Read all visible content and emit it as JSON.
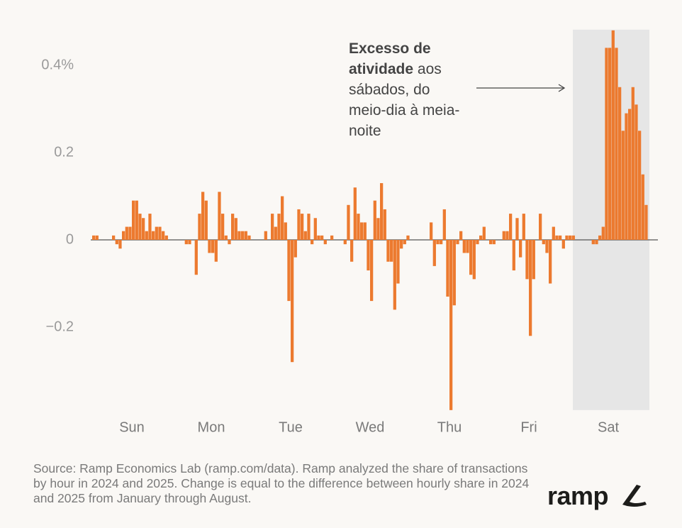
{
  "chart_data": {
    "type": "bar",
    "color": "#ec7a2f",
    "ylim": [
      -0.39,
      0.48
    ],
    "yticks": [
      {
        "value": 0.4,
        "label": "0.4%"
      },
      0.2,
      0,
      {
        "value": -0.2,
        "label": "−0.2"
      }
    ],
    "groups": [
      {
        "label": "Sun",
        "values": [
          0.01,
          0.01,
          0,
          0,
          0,
          0,
          0.01,
          -0.01,
          -0.02,
          0.02,
          0.03,
          0.03,
          0.09,
          0.09,
          0.06,
          0.05,
          0.02,
          0.06,
          0.02,
          0.03,
          0.03,
          0.02,
          0.01,
          0
        ]
      },
      {
        "label": "Mon",
        "values": [
          0,
          0,
          0,
          0,
          -0.01,
          -0.01,
          0,
          -0.08,
          0.06,
          0.11,
          0.09,
          -0.03,
          -0.03,
          -0.05,
          0.11,
          0.06,
          0.01,
          -0.01,
          0.06,
          0.05,
          0.02,
          0.02,
          0.02,
          0.01
        ]
      },
      {
        "label": "Tue",
        "values": [
          0,
          0,
          0,
          0,
          0.02,
          0,
          0.06,
          0.03,
          0.06,
          0.1,
          0.04,
          -0.14,
          -0.28,
          -0.04,
          0.07,
          0.06,
          0.02,
          0.06,
          -0.01,
          0.05,
          0.01,
          0.01,
          -0.01,
          0
        ]
      },
      {
        "label": "Wed",
        "values": [
          0.01,
          0,
          0,
          0,
          -0.01,
          0.08,
          -0.05,
          0.12,
          0.06,
          0.04,
          0.04,
          -0.07,
          -0.14,
          0.09,
          0.05,
          0.13,
          0.07,
          -0.05,
          -0.05,
          -0.16,
          -0.1,
          -0.02,
          -0.01,
          0.01
        ]
      },
      {
        "label": "Thu",
        "values": [
          0,
          0,
          0,
          0,
          0,
          0,
          0.04,
          -0.06,
          -0.01,
          -0.01,
          0.07,
          -0.13,
          -0.39,
          -0.15,
          -0.01,
          0.02,
          -0.03,
          -0.03,
          -0.08,
          -0.09,
          -0.01,
          0.01,
          0.03,
          0
        ]
      },
      {
        "label": "Fri",
        "values": [
          -0.01,
          -0.01,
          0,
          0,
          0.02,
          0.02,
          0.06,
          -0.07,
          0.05,
          -0.04,
          0.06,
          -0.09,
          -0.22,
          -0.09,
          0,
          0.06,
          -0.01,
          -0.03,
          -0.1,
          0.03,
          0.01,
          0.01,
          -0.02,
          0.01
        ]
      },
      {
        "label": "Sat",
        "values": [
          0.01,
          0.01,
          0,
          0,
          0,
          0,
          0,
          -0.01,
          -0.01,
          0.01,
          0.03,
          0.44,
          0.44,
          0.48,
          0.44,
          0.35,
          0.25,
          0.29,
          0.3,
          0.35,
          0.31,
          0.25,
          0.15,
          0.08
        ]
      }
    ],
    "annotation": {
      "bold": "Excesso de atividade",
      "text": "aos sábados, do meio-dia à meia-noite"
    },
    "source": "Source: Ramp Economics Lab (ramp.com/data). Ramp analyzed the share of transactions by hour in 2024 and 2025. Change is equal to the difference between hourly share in 2024 and 2025 from January through August.",
    "logo": "ramp"
  }
}
